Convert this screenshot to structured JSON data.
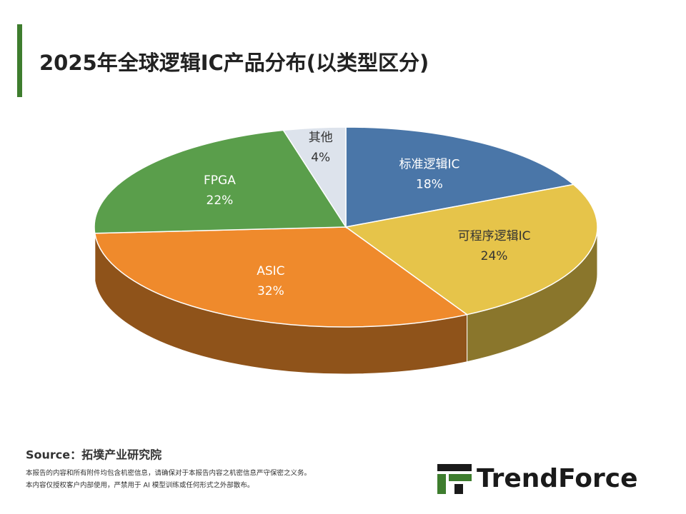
{
  "chart_data": {
    "type": "pie",
    "title": "2025年全球逻辑IC产品分布(以类型区分)",
    "categories": [
      "标准逻辑IC",
      "可程序逻辑IC",
      "ASIC",
      "FPGA",
      "其他"
    ],
    "values": [
      18,
      24,
      32,
      22,
      4
    ],
    "value_labels": [
      "18%",
      "24%",
      "32%",
      "22%",
      "4%"
    ],
    "colors": [
      "#4a76a8",
      "#e6c44a",
      "#ef8a2c",
      "#5a9e4b",
      "#dde3ec"
    ]
  },
  "source": "Source：拓墣产业研究院",
  "notes": [
    "本报告的内容和所有附件均包含机密信息，请确保对于本报告内容之机密信息严守保密之义务。",
    "本内容仅授权客户内部使用，严禁用于 AI 模型训练或任何形式之外部散布。"
  ],
  "logo": "TrendForce"
}
